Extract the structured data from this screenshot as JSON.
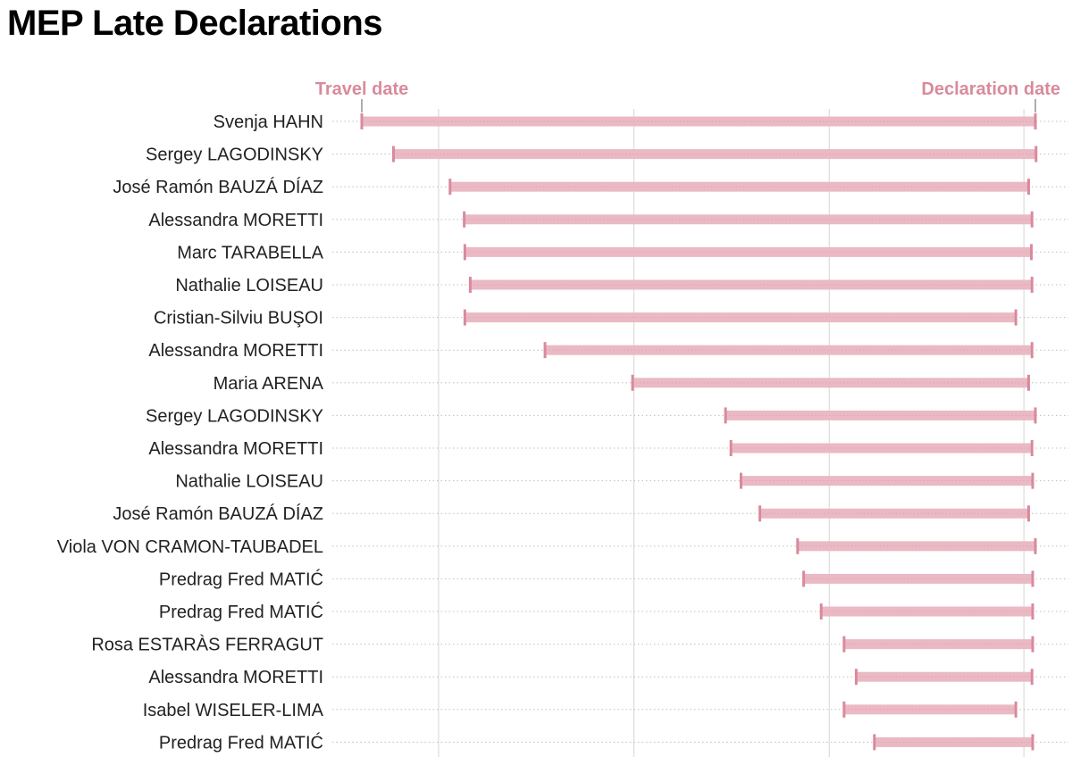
{
  "title": "MEP Late Declarations",
  "chart_data": {
    "type": "dumbbell",
    "start_label": "Travel date",
    "end_label": "Declaration date",
    "x_range": [
      0,
      1
    ],
    "colors": {
      "bar": "#eab9c4",
      "bar_stripe": "#d7a2af",
      "endpoint": "#d98a9c",
      "grid": "#dcdcdc",
      "row_rule": "#bfbfbf",
      "header_text": "#d98a9c"
    },
    "rows": [
      {
        "name": "Svenja HAHN",
        "start": 0.0,
        "end": 1.0
      },
      {
        "name": "Sergey LAGODINSKY",
        "start": 0.047,
        "end": 1.001
      },
      {
        "name": "José Ramón BAUZÁ DÍAZ",
        "start": 0.131,
        "end": 0.99
      },
      {
        "name": "Alessandra MORETTI",
        "start": 0.152,
        "end": 0.995
      },
      {
        "name": "Marc TARABELLA",
        "start": 0.153,
        "end": 0.994
      },
      {
        "name": "Nathalie LOISEAU",
        "start": 0.161,
        "end": 0.995
      },
      {
        "name": "Cristian-Silviu BUŞOI",
        "start": 0.153,
        "end": 0.971
      },
      {
        "name": "Alessandra MORETTI",
        "start": 0.272,
        "end": 0.995
      },
      {
        "name": "Maria ARENA",
        "start": 0.402,
        "end": 0.99
      },
      {
        "name": "Sergey LAGODINSKY",
        "start": 0.54,
        "end": 1.0
      },
      {
        "name": "Alessandra MORETTI",
        "start": 0.548,
        "end": 0.995
      },
      {
        "name": "Nathalie LOISEAU",
        "start": 0.563,
        "end": 0.996
      },
      {
        "name": "José Ramón BAUZÁ DÍAZ",
        "start": 0.591,
        "end": 0.99
      },
      {
        "name": "Viola VON CRAMON-TAUBADEL",
        "start": 0.647,
        "end": 1.0
      },
      {
        "name": "Predrag Fred MATIĆ",
        "start": 0.656,
        "end": 0.996
      },
      {
        "name": "Predrag Fred MATIĆ",
        "start": 0.682,
        "end": 0.996
      },
      {
        "name": "Rosa ESTARÀS FERRAGUT",
        "start": 0.716,
        "end": 0.996
      },
      {
        "name": "Alessandra MORETTI",
        "start": 0.734,
        "end": 0.995
      },
      {
        "name": "Isabel WISELER-LIMA",
        "start": 0.716,
        "end": 0.971
      },
      {
        "name": "Predrag Fred MATIĆ",
        "start": 0.761,
        "end": 0.996
      }
    ],
    "gridlines": [
      0.114,
      0.404,
      0.694,
      0.983
    ]
  }
}
